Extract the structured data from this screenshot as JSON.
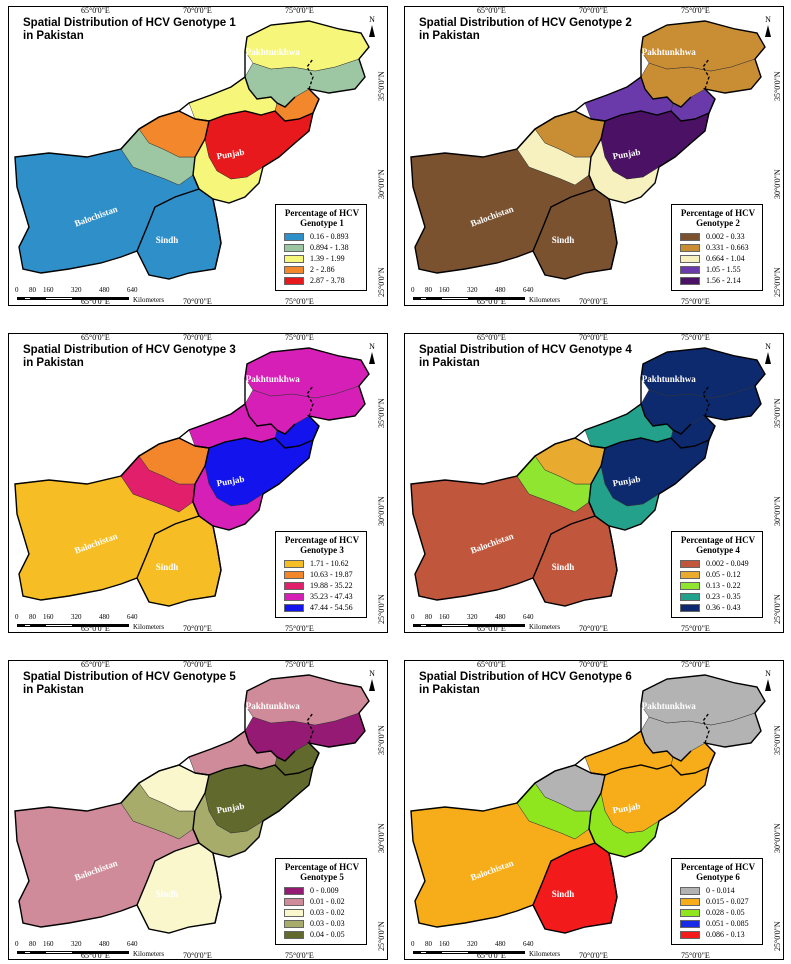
{
  "province_labels": {
    "kp": "Khyber Pakhtunkhwa",
    "punjab": "Punjab",
    "baloch": "Balochistan",
    "sindh": "Sindh"
  },
  "lon_labels": [
    "65°0'0\"E",
    "70°0'0\"E",
    "75°0'0\"E"
  ],
  "lat_labels": [
    "35°0'0\"N",
    "30°0'0\"N",
    "25°0'0\"N"
  ],
  "scale": {
    "ticks": [
      "0",
      "80",
      "160",
      "320",
      "480",
      "640"
    ],
    "unit": "Kilometers"
  },
  "north_label": "N",
  "panels": [
    {
      "title": "Spatial Distribution of HCV Genotype 1\nin Pakistan",
      "legend_title": "Percentage of HCV\nGenotype 1",
      "classes": [
        {
          "label": "0.16 - 0.893",
          "color": "#2f8fc9"
        },
        {
          "label": "0.894 - 1.38",
          "color": "#9cc7a2"
        },
        {
          "label": "1.39 - 1.99",
          "color": "#f6f77a"
        },
        {
          "label": "2 - 2.86",
          "color": "#f3872c"
        },
        {
          "label": "2.87 - 3.78",
          "color": "#e8191c"
        }
      ],
      "regions": {
        "kp": 1,
        "fata": 2,
        "north": 2,
        "punjab_n": 3,
        "punjab_c": 4,
        "punjab_s": 2,
        "sindh": 0,
        "baloch": 0,
        "baloch_ne": 1,
        "baloch_n": 3
      }
    },
    {
      "title": "Spatial Distribution of HCV Genotype 2\nin Pakistan",
      "legend_title": "Percentage of HCV\nGenotype 2",
      "classes": [
        {
          "label": "0.002 - 0.33",
          "color": "#7b5230"
        },
        {
          "label": "0.331 - 0.663",
          "color": "#c98d34"
        },
        {
          "label": "0.664 - 1.04",
          "color": "#f7f1bf"
        },
        {
          "label": "1.05 - 1.55",
          "color": "#6a3aab"
        },
        {
          "label": "1.56 - 2.14",
          "color": "#4a1164"
        }
      ],
      "regions": {
        "kp": 1,
        "fata": 3,
        "north": 1,
        "punjab_n": 3,
        "punjab_c": 4,
        "punjab_s": 2,
        "sindh": 0,
        "baloch": 0,
        "baloch_ne": 2,
        "baloch_n": 1
      }
    },
    {
      "title": "Spatial Distribution of HCV Genotype 3\nin Pakistan",
      "legend_title": "Percentage of HCV\nGenotype 3",
      "classes": [
        {
          "label": "1.71 - 10.62",
          "color": "#f6be24"
        },
        {
          "label": "10.63 - 19.87",
          "color": "#f3862b"
        },
        {
          "label": "19.88 - 35.22",
          "color": "#e21f6a"
        },
        {
          "label": "35.23 - 47.43",
          "color": "#d61fb6"
        },
        {
          "label": "47.44 - 54.56",
          "color": "#1313ee"
        }
      ],
      "regions": {
        "kp": 3,
        "fata": 3,
        "north": 3,
        "punjab_n": 4,
        "punjab_c": 4,
        "punjab_s": 3,
        "sindh": 0,
        "baloch": 0,
        "baloch_ne": 2,
        "baloch_n": 1
      }
    },
    {
      "title": "Spatial Distribution of HCV Genotype 4\nin Pakistan",
      "legend_title": "Percentage of HCV\nGenotype 4",
      "classes": [
        {
          "label": "0.002 - 0.049",
          "color": "#c0573d"
        },
        {
          "label": "0.05 - 0.12",
          "color": "#e9ab2f"
        },
        {
          "label": "0.13 - 0.22",
          "color": "#8fe530"
        },
        {
          "label": "0.23 - 0.35",
          "color": "#24a18b"
        },
        {
          "label": "0.36 - 0.43",
          "color": "#0d2a6e"
        }
      ],
      "regions": {
        "kp": 4,
        "fata": 3,
        "north": 4,
        "punjab_n": 4,
        "punjab_c": 4,
        "punjab_s": 3,
        "sindh": 0,
        "baloch": 0,
        "baloch_ne": 2,
        "baloch_n": 1
      }
    },
    {
      "title": "Spatial Distribution of HCV Genotype 5\nin Pakistan",
      "legend_title": "Percentage of HCV\nGenotype 5",
      "classes": [
        {
          "label": "0 - 0.009",
          "color": "#951a73"
        },
        {
          "label": "0.01 - 0.02",
          "color": "#cf8b99"
        },
        {
          "label": "0.03 - 0.02",
          "color": "#faf7cd"
        },
        {
          "label": "0.03 - 0.03",
          "color": "#a8ac6b"
        },
        {
          "label": "0.04 - 0.05",
          "color": "#616a2c"
        }
      ],
      "regions": {
        "kp": 0,
        "fata": 1,
        "north": 1,
        "punjab_n": 4,
        "punjab_c": 4,
        "punjab_s": 3,
        "sindh": 2,
        "baloch": 1,
        "baloch_ne": 3,
        "baloch_n": 2
      }
    },
    {
      "title": "Spatial Distribution of HCV Genotype 6\nin Pakistan",
      "legend_title": "Percentage of HCV\nGenotype 6",
      "classes": [
        {
          "label": "0 - 0.014",
          "color": "#b3b3b3"
        },
        {
          "label": "0.015 - 0.027",
          "color": "#f7ad19"
        },
        {
          "label": "0.028 - 0.05",
          "color": "#8fe61f"
        },
        {
          "label": "0.051 - 0.085",
          "color": "#1a2be8"
        },
        {
          "label": "0.086 - 0.13",
          "color": "#f21a1a"
        }
      ],
      "regions": {
        "kp": 0,
        "fata": 1,
        "north": 0,
        "punjab_n": 1,
        "punjab_c": 1,
        "punjab_s": 2,
        "sindh": 4,
        "baloch": 1,
        "baloch_ne": 2,
        "baloch_n": 0
      }
    }
  ]
}
